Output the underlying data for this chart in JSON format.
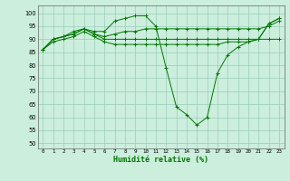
{
  "title": "",
  "xlabel": "Humidité relative (%)",
  "ylabel": "",
  "background_color": "#cceedd",
  "line_color": "#007700",
  "grid_color": "#99ccbb",
  "xlim": [
    -0.5,
    23.5
  ],
  "ylim": [
    48,
    103
  ],
  "yticks": [
    50,
    55,
    60,
    65,
    70,
    75,
    80,
    85,
    90,
    95,
    100
  ],
  "xticks": [
    0,
    1,
    2,
    3,
    4,
    5,
    6,
    7,
    8,
    9,
    10,
    11,
    12,
    13,
    14,
    15,
    16,
    17,
    18,
    19,
    20,
    21,
    22,
    23
  ],
  "series": [
    {
      "x": [
        0,
        1,
        2,
        3,
        4,
        5,
        6,
        7,
        8,
        9,
        10,
        11,
        12,
        13,
        14,
        15,
        16,
        17,
        18,
        19,
        20,
        21,
        22,
        23
      ],
      "y": [
        86,
        90,
        91,
        93,
        94,
        93,
        93,
        97,
        98,
        99,
        99,
        95,
        79,
        64,
        61,
        57,
        60,
        77,
        84,
        87,
        89,
        90,
        96,
        98
      ]
    },
    {
      "x": [
        0,
        1,
        2,
        3,
        4,
        5,
        6,
        7,
        8,
        9,
        10,
        11,
        12,
        13,
        14,
        15,
        16,
        17,
        18,
        19,
        20,
        21,
        22,
        23
      ],
      "y": [
        86,
        90,
        91,
        92,
        94,
        92,
        91,
        92,
        93,
        93,
        94,
        94,
        94,
        94,
        94,
        94,
        94,
        94,
        94,
        94,
        94,
        94,
        95,
        97
      ]
    },
    {
      "x": [
        0,
        1,
        2,
        3,
        4,
        5,
        6,
        7,
        8,
        9,
        10,
        11,
        12,
        13,
        14,
        15,
        16,
        17,
        18,
        19,
        20,
        21,
        22,
        23
      ],
      "y": [
        86,
        90,
        91,
        92,
        94,
        92,
        90,
        90,
        90,
        90,
        90,
        90,
        90,
        90,
        90,
        90,
        90,
        90,
        90,
        90,
        90,
        90,
        90,
        90
      ]
    },
    {
      "x": [
        0,
        1,
        2,
        3,
        4,
        5,
        6,
        7,
        8,
        9,
        10,
        11,
        12,
        13,
        14,
        15,
        16,
        17,
        18,
        19,
        20,
        21,
        22,
        23
      ],
      "y": [
        86,
        89,
        90,
        91,
        93,
        91,
        89,
        88,
        88,
        88,
        88,
        88,
        88,
        88,
        88,
        88,
        88,
        88,
        89,
        89,
        89,
        90,
        96,
        98
      ]
    }
  ]
}
